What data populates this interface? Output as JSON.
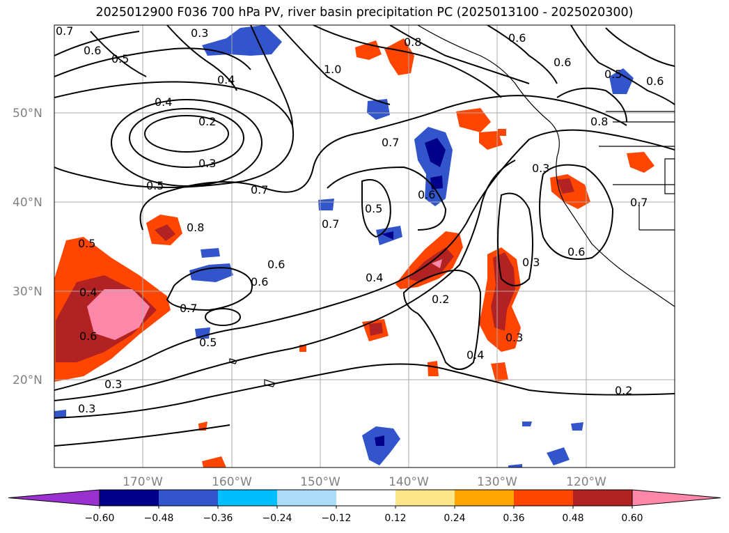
{
  "title": "2025012900 F036 700 hPa PV, river basin precipitation PC (2025013100 - 2025020300)",
  "map": {
    "lat_labels": [
      "50°N",
      "40°N",
      "30°N",
      "20°N"
    ],
    "lon_labels": [
      "170°W",
      "160°W",
      "150°W",
      "140°W",
      "130°W",
      "120°W"
    ],
    "contour_labels": [
      "0.7",
      "0.6",
      "0.5",
      "0.3",
      "0.4",
      "1.0",
      "0.8",
      "0.6",
      "0.6",
      "0.4",
      "0.2",
      "0.3",
      "0.5",
      "0.7",
      "0.7",
      "0.5",
      "0.6",
      "0.8",
      "0.7",
      "0.6",
      "0.6",
      "0.4",
      "0.2",
      "0.3",
      "0.7",
      "0.5",
      "0.3",
      "0.4",
      "0.6",
      "0.5",
      "0.3",
      "0.2",
      "0.5",
      "0.6",
      "0.4",
      "0.8",
      "0.3",
      "0.7",
      "0.6",
      "0.3"
    ]
  },
  "colorbar": {
    "ticks": [
      "−0.60",
      "−0.48",
      "−0.36",
      "−0.24",
      "−0.12",
      "0.12",
      "0.24",
      "0.36",
      "0.48",
      "0.60"
    ],
    "colors": [
      "#9b30d0",
      "#00008b",
      "#3355cc",
      "#00bfff",
      "#aadcf7",
      "#ffffff",
      "#fce68a",
      "#ffa500",
      "#ff4500",
      "#b22222",
      "#ff88aa"
    ]
  }
}
